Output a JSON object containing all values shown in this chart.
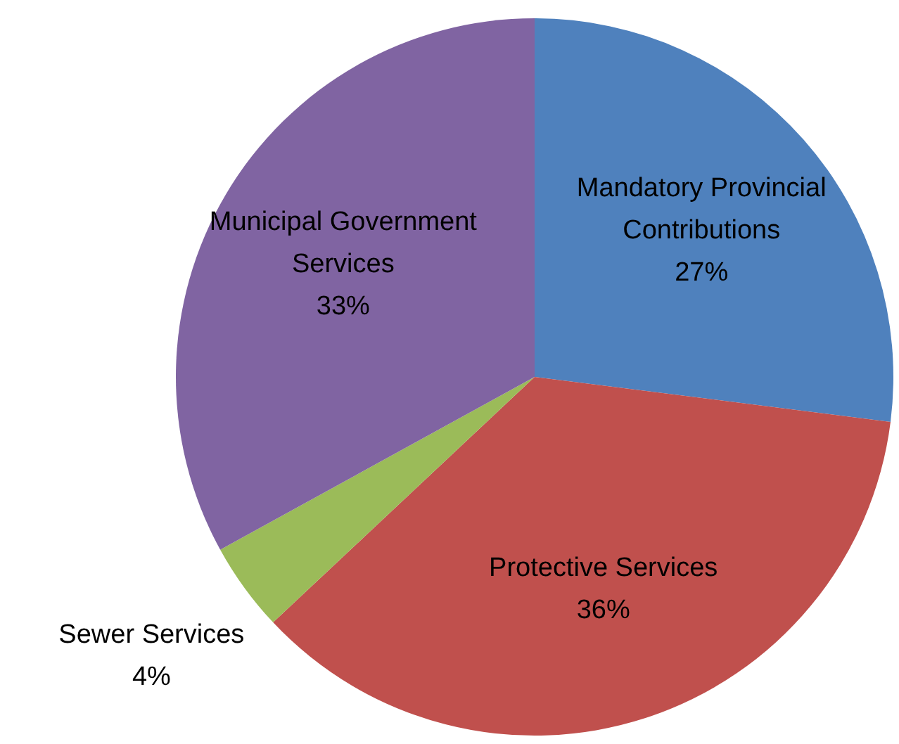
{
  "chart_data": {
    "type": "pie",
    "categories": [
      "Mandatory Provincial Contributions",
      "Protective Services",
      "Sewer Services",
      "Municipal Government Services"
    ],
    "values": [
      27,
      36,
      4,
      33
    ],
    "colors": [
      "#4f81bd",
      "#c0504d",
      "#9bbb59",
      "#8064a2"
    ],
    "value_labels": [
      "27%",
      "36%",
      "4%",
      "33%"
    ]
  }
}
